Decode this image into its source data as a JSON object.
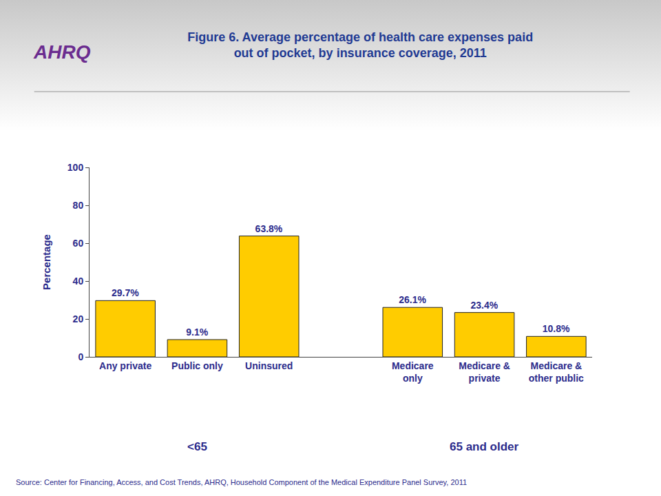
{
  "chart_data": {
    "type": "bar",
    "title": "Figure 6. Average percentage of health care expenses paid out of pocket, by insurance coverage, 2011",
    "y_label": "Percentage",
    "categories": [
      "Any private",
      "Public only",
      "Uninsured",
      null,
      "Medicare only",
      "Medicare & private",
      "Medicare & other public"
    ],
    "values": [
      29.7,
      9.1,
      63.8,
      null,
      26.1,
      23.4,
      10.8
    ],
    "value_labels": [
      "29.7%",
      "9.1%",
      "63.8%",
      null,
      "26.1%",
      "23.4%",
      "10.8%"
    ],
    "groups": [
      {
        "label": "<65",
        "categories": [
          "Any private",
          "Public only",
          "Uninsured"
        ]
      },
      {
        "label": "65 and older",
        "categories": [
          "Medicare only",
          "Medicare & private",
          "Medicare & other public"
        ]
      }
    ],
    "source": "Source: Center for Financing, Access, and Cost Trends, AHRQ, Household Component of the Medical Expenditure Panel Survey, 2011",
    "logo": "AHRQ",
    "color": "#ffcc00",
    "ylim": [
      0,
      100
    ],
    "yticks": [
      0,
      20,
      40,
      60,
      80,
      100
    ],
    "grid": false,
    "data_labels": true
  }
}
